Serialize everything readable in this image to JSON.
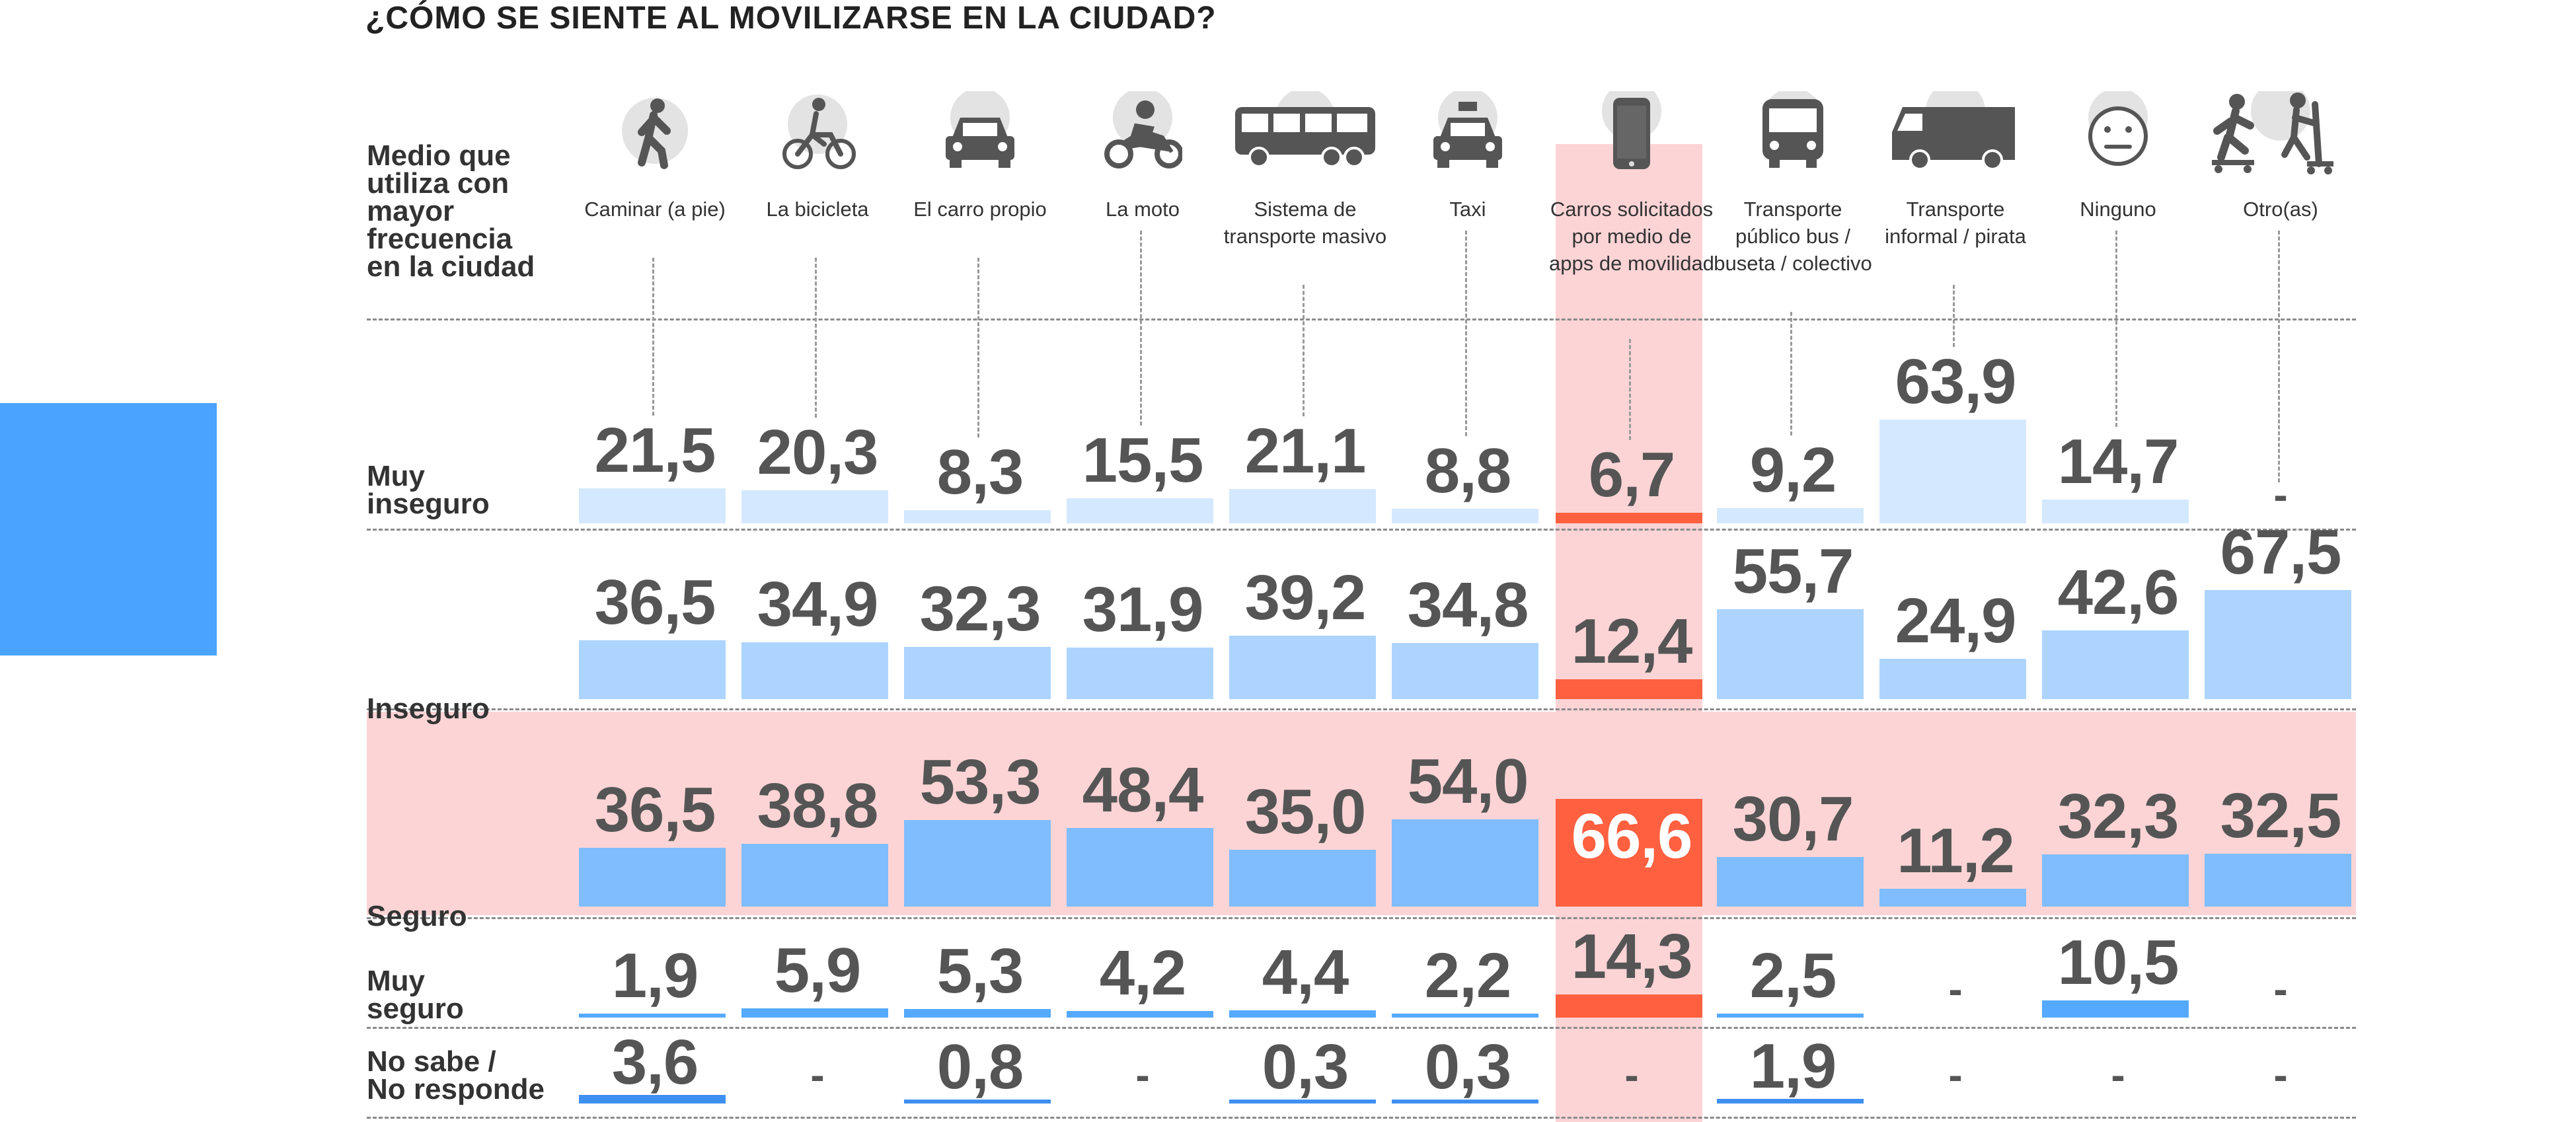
{
  "title": "¿CÓMO SE SIENTE AL MOVILIZARSE EN LA CIUDAD?",
  "header_label": "Medio que utiliza con mayor frecuencia en la ciudad",
  "colors": {
    "muy_inseguro": "#d4e9ff",
    "inseguro": "#acd4ff",
    "seguro": "#7fbdff",
    "muy_seguro": "#55aaff",
    "no_sabe": "#3d8ff0",
    "highlight": "#ff6040",
    "band": "#fdd4d6"
  },
  "columns": [
    {
      "name": "Caminar (a pie)",
      "icon": "walking-person-icon"
    },
    {
      "name": "La bicicleta",
      "icon": "bicycle-icon"
    },
    {
      "name": "El carro propio",
      "icon": "car-icon"
    },
    {
      "name": "La moto",
      "icon": "motorcycle-icon"
    },
    {
      "name": "Sistema de transporte masivo",
      "icon": "bus-rapid-transit-icon"
    },
    {
      "name": "Taxi",
      "icon": "taxi-icon"
    },
    {
      "name": "Carros solicitados por medio de apps de movilidad",
      "icon": "smartphone-icon"
    },
    {
      "name": "Transporte público bus / buseta / colectivo",
      "icon": "bus-icon"
    },
    {
      "name": "Transporte informal / pirata",
      "icon": "van-icon"
    },
    {
      "name": "Ninguno",
      "icon": "neutral-face-icon"
    },
    {
      "name": "Otro(as)",
      "icon": "skate-scooter-icon"
    }
  ],
  "chart_data": {
    "type": "table",
    "title": "¿CÓMO SE SIENTE AL MOVILIZARSE EN LA CIUDAD?",
    "categories": [
      "Caminar (a pie)",
      "La bicicleta",
      "El carro propio",
      "La moto",
      "Sistema de transporte masivo",
      "Taxi",
      "Carros solicitados por medio de apps de movilidad",
      "Transporte público bus / buseta / colectivo",
      "Transporte informal / pirata",
      "Ninguno",
      "Otro(as)"
    ],
    "highlight_category_index": 6,
    "unit": "%",
    "series": [
      {
        "name": "Muy inseguro",
        "values": [
          21.5,
          20.3,
          8.3,
          15.5,
          21.1,
          8.8,
          6.7,
          9.2,
          63.9,
          14.7,
          null
        ],
        "labels": [
          "21,5",
          "20,3",
          "8,3",
          "15,5",
          "21,1",
          "8,8",
          "6,7",
          "9,2",
          "63,9",
          "14,7",
          "-"
        ]
      },
      {
        "name": "Inseguro",
        "values": [
          36.5,
          34.9,
          32.3,
          31.9,
          39.2,
          34.8,
          12.4,
          55.7,
          24.9,
          42.6,
          67.5
        ],
        "labels": [
          "36,5",
          "34,9",
          "32,3",
          "31,9",
          "39,2",
          "34,8",
          "12,4",
          "55,7",
          "24,9",
          "42,6",
          "67,5"
        ]
      },
      {
        "name": "Seguro",
        "values": [
          36.5,
          38.8,
          53.3,
          48.4,
          35.0,
          54.0,
          66.6,
          30.7,
          11.2,
          32.3,
          32.5
        ],
        "labels": [
          "36,5",
          "38,8",
          "53,3",
          "48,4",
          "35,0",
          "54,0",
          "66,6",
          "30,7",
          "11,2",
          "32,3",
          "32,5"
        ]
      },
      {
        "name": "Muy seguro",
        "values": [
          1.9,
          5.9,
          5.3,
          4.2,
          4.4,
          2.2,
          14.3,
          2.5,
          null,
          10.5,
          null
        ],
        "labels": [
          "1,9",
          "5,9",
          "5,3",
          "4,2",
          "4,4",
          "2,2",
          "14,3",
          "2,5",
          "-",
          "10,5",
          "-"
        ]
      },
      {
        "name": "No sabe / No responde",
        "values": [
          3.6,
          null,
          0.8,
          null,
          0.3,
          0.3,
          null,
          1.9,
          null,
          null,
          null
        ],
        "labels": [
          "3,6",
          "-",
          "0,8",
          "-",
          "0,3",
          "0,3",
          "-",
          "1,9",
          "-",
          "-",
          "-"
        ]
      }
    ],
    "row_labels": [
      "Muy inseguro",
      "Inseguro",
      "Seguro",
      "Muy seguro",
      "No sabe / No responde"
    ],
    "row_label_lines": [
      [
        "Muy",
        "inseguro"
      ],
      [
        "Inseguro"
      ],
      [
        "Seguro"
      ],
      [
        "Muy",
        "seguro"
      ],
      [
        "No sabe /",
        "No responde"
      ]
    ]
  }
}
